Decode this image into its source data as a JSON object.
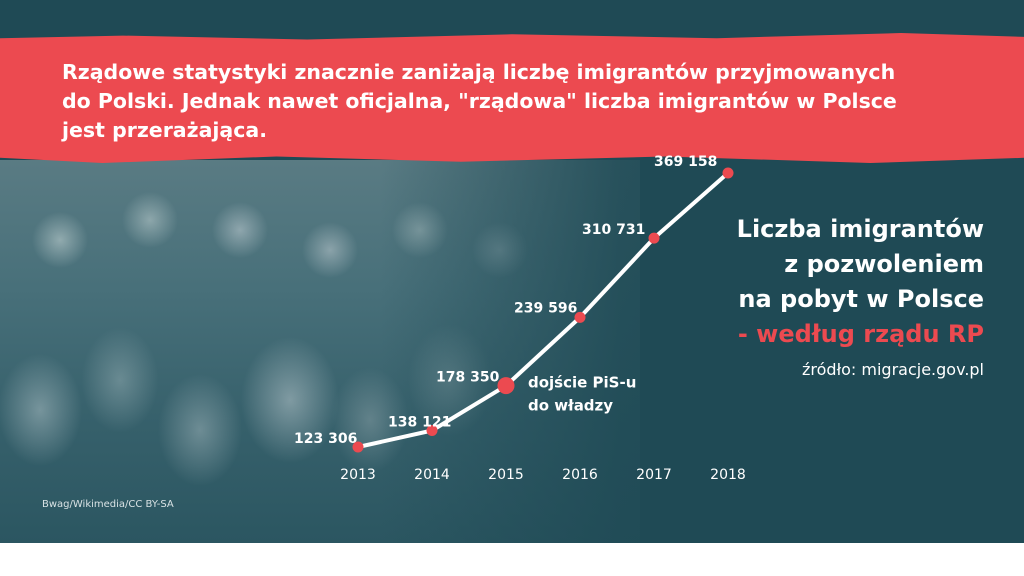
{
  "header": {
    "lines": [
      "Rządowe statystyki znacznie zaniżają liczbę imigrantów przyjmowanych",
      "do Polski. Jednak nawet oficjalna, \"rządowa\" liczba imigrantów w Polsce",
      "jest przerażająca."
    ]
  },
  "title_block": {
    "lines": [
      "Liczba imigrantów",
      "z pozwoleniem",
      "na pobyt w Polsce"
    ],
    "highlight": "- według rządu RP",
    "source": "źródło: migracje.gov.pl"
  },
  "photo_credit": "Bwag/Wikimedia/CC BY-SA",
  "colors": {
    "accent": "#ec4a50",
    "background": "#1f4a55",
    "text": "#ffffff"
  },
  "chart_data": {
    "type": "line",
    "x": [
      "2013",
      "2014",
      "2015",
      "2016",
      "2017",
      "2018"
    ],
    "series": [
      {
        "values": [
          123306,
          138121,
          178350,
          239596,
          310731,
          369158
        ]
      }
    ],
    "value_labels": [
      "123 306",
      "138 121",
      "178 350",
      "239 596",
      "310 731",
      "369 158"
    ],
    "annotation": {
      "at": "2015",
      "lines": [
        "dojście PiS-u",
        "do władzy"
      ]
    },
    "grid": false,
    "legend": "none"
  }
}
